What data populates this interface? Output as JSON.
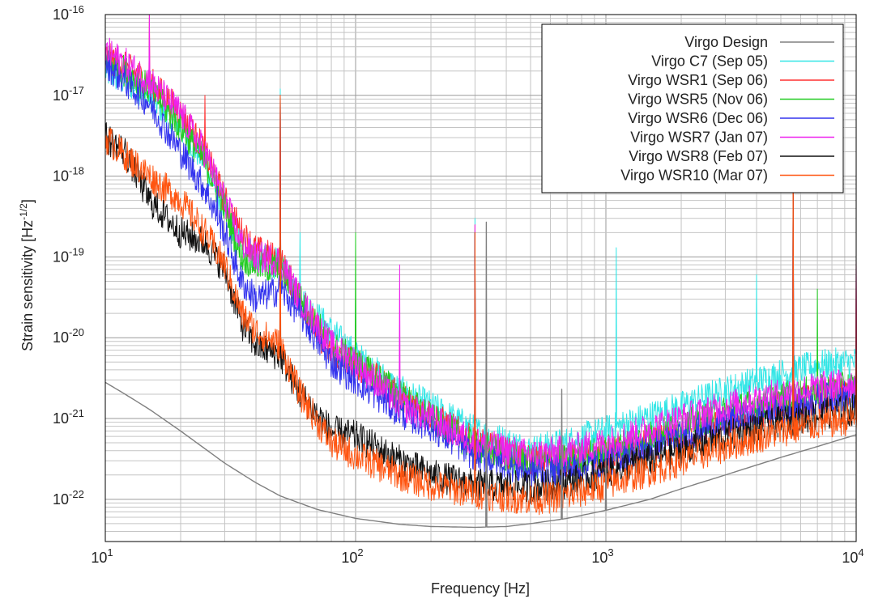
{
  "chart_data": {
    "type": "line",
    "xlabel": "Frequency [Hz]",
    "ylabel_main": "Strain sensitivity [Hz",
    "ylabel_exp": "-1/2",
    "ylabel_close": "]",
    "x_scale": "log",
    "y_scale": "log",
    "xlim": [
      10,
      10000
    ],
    "ylim": [
      3e-23,
      1e-16
    ],
    "grid": true,
    "legend_position": "top-right",
    "x_ticks": [
      {
        "base": "10",
        "exp": "1",
        "value": 10
      },
      {
        "base": "10",
        "exp": "2",
        "value": 100
      },
      {
        "base": "10",
        "exp": "3",
        "value": 1000
      },
      {
        "base": "10",
        "exp": "4",
        "value": 10000
      }
    ],
    "y_ticks": [
      {
        "base": "10",
        "exp": "-22",
        "value": 1e-22
      },
      {
        "base": "10",
        "exp": "-21",
        "value": 1e-21
      },
      {
        "base": "10",
        "exp": "-20",
        "value": 1e-20
      },
      {
        "base": "10",
        "exp": "-19",
        "value": 1e-19
      },
      {
        "base": "10",
        "exp": "-18",
        "value": 1e-18
      },
      {
        "base": "10",
        "exp": "-17",
        "value": 1e-17
      },
      {
        "base": "10",
        "exp": "-16",
        "value": 1e-16
      }
    ],
    "series": [
      {
        "name": "Virgo Design",
        "color": "#808080",
        "noise": 0,
        "spikes": [
          [
            333,
            2.7e-19
          ],
          [
            666,
            2.3e-21
          ],
          [
            1000,
            3e-22
          ]
        ],
        "x": [
          10,
          12,
          15,
          20,
          30,
          40,
          50,
          70,
          100,
          150,
          200,
          300,
          400,
          500,
          700,
          1000,
          1500,
          2000,
          3000,
          5000,
          7000,
          10000
        ],
        "y": [
          2.8e-21,
          2e-21,
          1.3e-21,
          7e-22,
          2.8e-22,
          1.6e-22,
          1.1e-22,
          7.5e-23,
          5.8e-23,
          4.9e-23,
          4.6e-23,
          4.5e-23,
          4.6e-23,
          5e-23,
          5.8e-23,
          7.3e-23,
          1e-22,
          1.35e-22,
          2e-22,
          3.3e-22,
          4.5e-22,
          6.3e-22
        ]
      },
      {
        "name": "Virgo C7 (Sep 05)",
        "color": "#33e6e6",
        "noise": 0.2,
        "spikes": [
          [
            50,
            1.2e-17
          ],
          [
            60,
            2e-19
          ],
          [
            100,
            3e-20
          ],
          [
            300,
            3e-19
          ],
          [
            1100,
            1.3e-19
          ],
          [
            4000,
            6e-20
          ],
          [
            5600,
            5e-18
          ]
        ],
        "x": [
          10,
          12,
          15,
          20,
          25,
          30,
          35,
          40,
          50,
          60,
          80,
          100,
          150,
          200,
          300,
          500,
          700,
          1000,
          2000,
          3000,
          5000,
          7000,
          10000
        ],
        "y": [
          2e-17,
          1.5e-17,
          1e-17,
          4e-18,
          1.5e-18,
          4e-19,
          1.5e-19,
          1e-19,
          8e-20,
          3e-20,
          1.2e-20,
          6e-21,
          2.2e-21,
          1.4e-21,
          7e-22,
          4e-22,
          5e-22,
          7e-22,
          1.4e-21,
          2.2e-21,
          3.5e-21,
          4.5e-21,
          5e-21
        ]
      },
      {
        "name": "Virgo WSR1 (Sep 06)",
        "color": "#ff3030",
        "noise": 0.2,
        "spikes": [
          [
            15,
            1e-16
          ],
          [
            25,
            1e-17
          ],
          [
            50,
            1e-17
          ],
          [
            100,
            2e-20
          ],
          [
            300,
            2.5e-19
          ],
          [
            5600,
            5e-18
          ],
          [
            10000,
            9e-20
          ]
        ],
        "x": [
          10,
          12,
          15,
          20,
          25,
          30,
          35,
          40,
          50,
          60,
          80,
          100,
          150,
          200,
          300,
          500,
          700,
          1000,
          2000,
          3000,
          5000,
          7000,
          10000
        ],
        "y": [
          3e-17,
          2.2e-17,
          1.5e-17,
          6e-18,
          2e-18,
          5e-19,
          2e-19,
          1.2e-19,
          9e-20,
          3e-20,
          6e-21,
          5e-21,
          1.8e-21,
          1.1e-21,
          5e-22,
          3e-22,
          3e-22,
          3.5e-22,
          6e-22,
          9e-22,
          1.4e-21,
          1.8e-21,
          2.2e-21
        ]
      },
      {
        "name": "Virgo WSR5 (Nov 06)",
        "color": "#22cc22",
        "noise": 0.2,
        "spikes": [
          [
            50,
            1e-17
          ],
          [
            100,
            2e-19
          ],
          [
            300,
            2e-19
          ],
          [
            5600,
            5e-18
          ],
          [
            7000,
            4e-20
          ]
        ],
        "x": [
          10,
          12,
          15,
          20,
          25,
          30,
          35,
          40,
          50,
          60,
          80,
          100,
          150,
          200,
          300,
          500,
          700,
          1000,
          2000,
          3000,
          5000,
          7000,
          10000
        ],
        "y": [
          3e-17,
          2e-17,
          1.2e-17,
          4e-18,
          1.5e-18,
          4e-19,
          1e-19,
          8e-20,
          7e-20,
          3e-20,
          8e-21,
          5e-21,
          2e-21,
          1e-21,
          4.5e-22,
          2.8e-22,
          3e-22,
          4e-22,
          8e-22,
          1.2e-21,
          1.8e-21,
          2.2e-21,
          2.5e-21
        ]
      },
      {
        "name": "Virgo WSR6 (Dec 06)",
        "color": "#3333ee",
        "noise": 0.2,
        "spikes": [
          [
            28,
            1e-18
          ],
          [
            50,
            1e-17
          ],
          [
            300,
            2e-19
          ],
          [
            5600,
            5e-18
          ]
        ],
        "x": [
          10,
          12,
          15,
          20,
          25,
          30,
          35,
          40,
          50,
          60,
          80,
          100,
          150,
          200,
          300,
          500,
          700,
          1000,
          2000,
          3000,
          5000,
          7000,
          10000
        ],
        "y": [
          2.5e-17,
          1.5e-17,
          8e-18,
          2e-18,
          7e-19,
          2e-19,
          5e-20,
          3e-20,
          4e-20,
          2e-20,
          5e-21,
          3e-21,
          1.2e-21,
          8e-22,
          3.5e-22,
          2.2e-22,
          2.3e-22,
          3e-22,
          6e-22,
          9e-22,
          1.3e-21,
          1.7e-21,
          2e-21
        ]
      },
      {
        "name": "Virgo WSR7 (Jan 07)",
        "color": "#ee22ee",
        "noise": 0.2,
        "spikes": [
          [
            15,
            1e-16
          ],
          [
            50,
            1e-17
          ],
          [
            150,
            8e-20
          ],
          [
            300,
            2.5e-19
          ],
          [
            5600,
            5e-18
          ],
          [
            10000,
            9e-20
          ]
        ],
        "x": [
          10,
          12,
          15,
          20,
          25,
          30,
          35,
          40,
          50,
          60,
          80,
          100,
          150,
          200,
          300,
          500,
          700,
          1000,
          2000,
          3000,
          5000,
          7000,
          10000
        ],
        "y": [
          3.5e-17,
          2.5e-17,
          1.5e-17,
          6e-18,
          2e-18,
          5e-19,
          1.5e-19,
          1e-19,
          9e-20,
          3e-20,
          8e-21,
          5e-21,
          1.5e-21,
          1e-21,
          5e-22,
          3.5e-22,
          4e-22,
          5e-22,
          1e-21,
          1.4e-21,
          2e-21,
          2.4e-21,
          2.8e-21
        ]
      },
      {
        "name": "Virgo WSR8 (Feb 07)",
        "color": "#111111",
        "noise": 0.2,
        "spikes": [
          [
            50,
            1e-17
          ],
          [
            300,
            2e-19
          ],
          [
            5600,
            5e-18
          ]
        ],
        "x": [
          10,
          12,
          15,
          20,
          25,
          30,
          35,
          40,
          50,
          60,
          80,
          100,
          150,
          200,
          300,
          500,
          700,
          1000,
          2000,
          3000,
          5000,
          7000,
          10000
        ],
        "y": [
          3e-18,
          2e-18,
          5e-19,
          2e-19,
          1.5e-19,
          7e-20,
          1.5e-20,
          8e-21,
          6e-21,
          2e-21,
          7e-22,
          6e-22,
          3e-22,
          2e-22,
          1.5e-22,
          1.4e-22,
          1.6e-22,
          2.2e-22,
          4e-22,
          6e-22,
          9e-22,
          1.1e-21,
          1.3e-21
        ]
      },
      {
        "name": "Virgo WSR10 (Mar 07)",
        "color": "#ff5511",
        "noise": 0.2,
        "spikes": [
          [
            50,
            1e-17
          ],
          [
            300,
            2e-19
          ],
          [
            5600,
            5e-18
          ],
          [
            10000,
            5e-20
          ]
        ],
        "x": [
          10,
          12,
          15,
          20,
          25,
          30,
          35,
          40,
          50,
          60,
          80,
          100,
          150,
          200,
          300,
          500,
          700,
          1000,
          2000,
          3000,
          5000,
          7000,
          10000
        ],
        "y": [
          3e-18,
          1.8e-18,
          1e-18,
          5e-19,
          2e-19,
          8e-20,
          2e-20,
          1.2e-20,
          8e-21,
          2e-21,
          5e-22,
          3.5e-22,
          2e-22,
          1.5e-22,
          1.2e-22,
          1e-22,
          1.1e-22,
          1.5e-22,
          3e-22,
          4.5e-22,
          7e-22,
          8.5e-22,
          1e-21
        ]
      }
    ]
  }
}
